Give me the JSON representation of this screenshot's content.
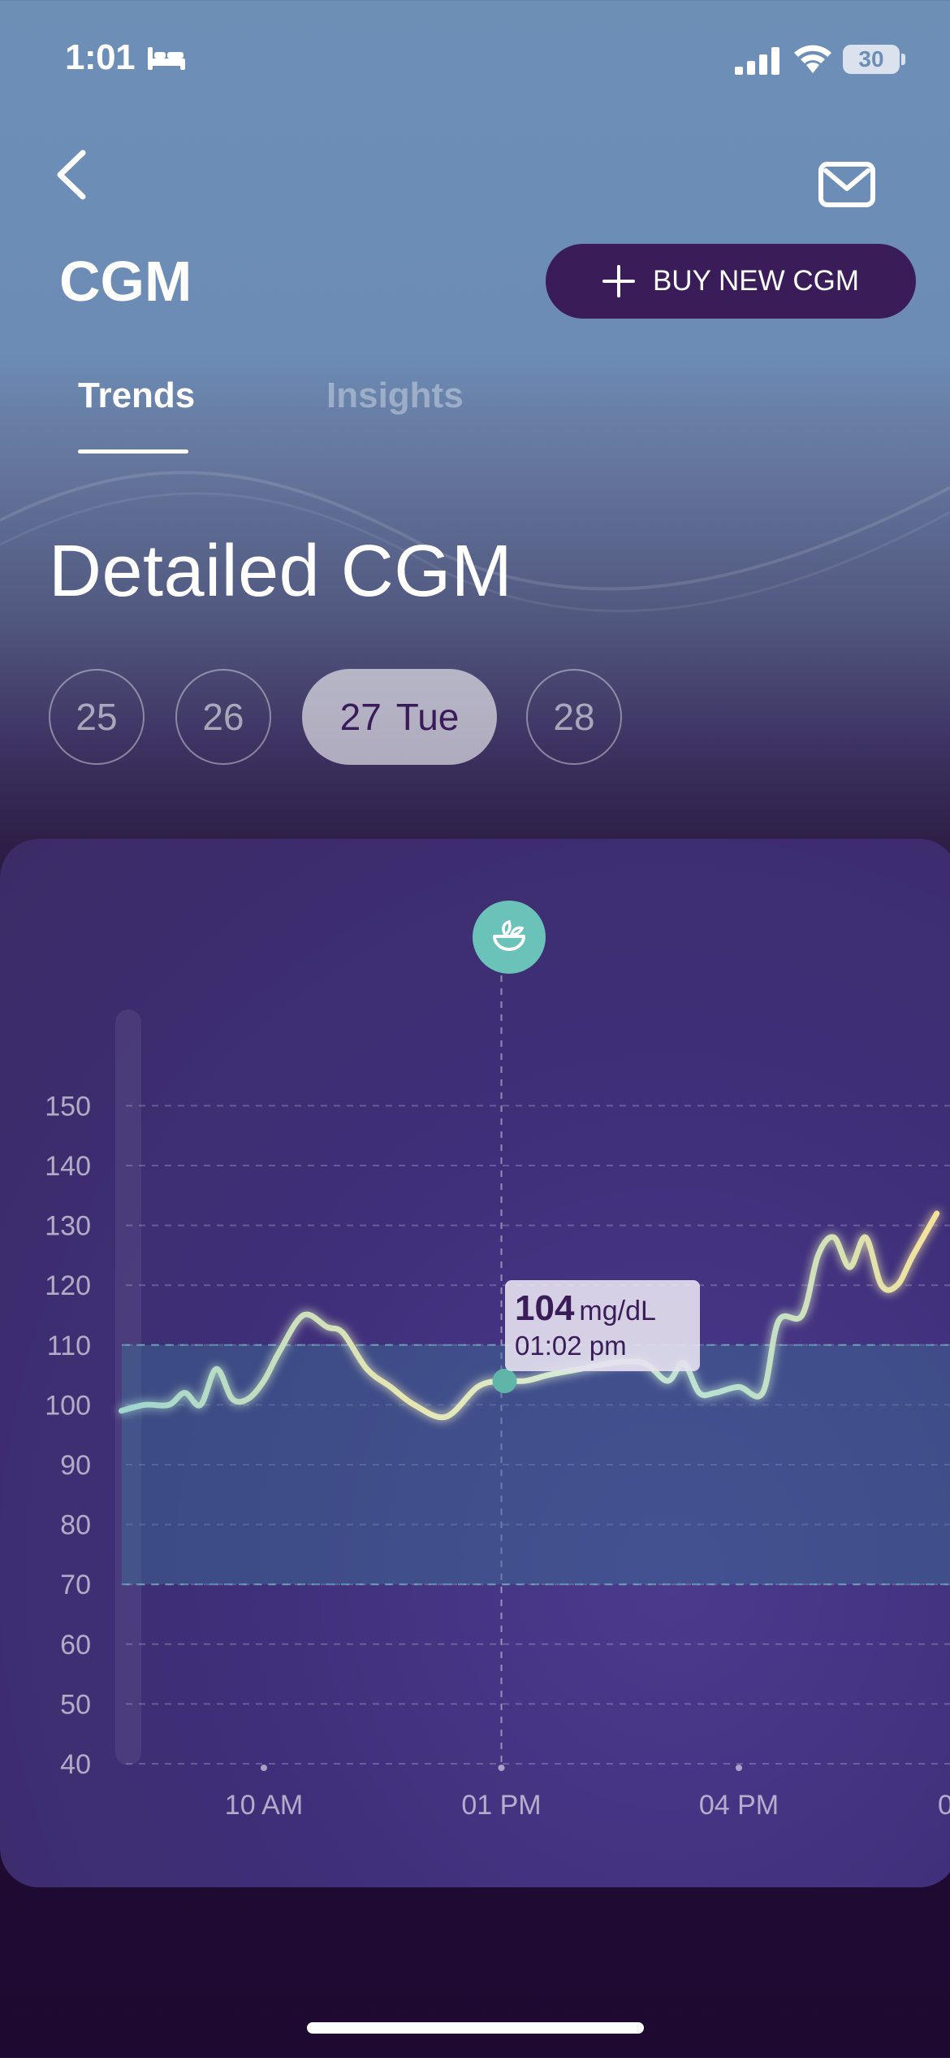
{
  "status_bar": {
    "time": "1:01",
    "battery": "30"
  },
  "header": {
    "title": "CGM",
    "buy_button": "BUY NEW CGM"
  },
  "tabs": [
    {
      "label": "Trends",
      "active": true
    },
    {
      "label": "Insights",
      "active": false
    }
  ],
  "section": {
    "title": "Detailed CGM"
  },
  "days": [
    {
      "label": "25",
      "selected": false
    },
    {
      "label": "26",
      "selected": false
    },
    {
      "label": "27",
      "weekday": "Tue",
      "selected": true
    },
    {
      "label": "28",
      "selected": false
    }
  ],
  "colors": {
    "accent": "#3a1c58",
    "marker": "#6ac2b8",
    "line_low": "#9fd6cf",
    "line_high": "#f5e29a"
  },
  "chart_data": {
    "type": "line",
    "ylim": [
      40,
      150
    ],
    "y_ticks": [
      "150",
      "140",
      "130",
      "120",
      "110",
      "100",
      "90",
      "80",
      "70",
      "60",
      "50",
      "40"
    ],
    "x_ticks": [
      "10 AM",
      "01 PM",
      "04 PM",
      "0"
    ],
    "x_tick_hours": [
      10,
      13,
      16,
      19
    ],
    "target_range": [
      70,
      110
    ],
    "series": [
      {
        "unit": "mg/dL",
        "x": [
          8.2,
          8.5,
          8.8,
          9.0,
          9.2,
          9.4,
          9.6,
          9.8,
          10.0,
          10.2,
          10.5,
          10.8,
          11.0,
          11.3,
          11.6,
          11.9,
          12.3,
          12.7,
          13.0,
          13.3,
          13.6,
          14.0,
          14.4,
          14.8,
          15.1,
          15.3,
          15.5,
          15.7,
          16.0,
          16.3,
          16.5,
          16.8,
          17.0,
          17.2,
          17.4,
          17.6,
          17.8,
          18.0,
          18.2,
          18.5
        ],
        "y": [
          99,
          100,
          100,
          102,
          100,
          106,
          101,
          101,
          104,
          109,
          115,
          113,
          112,
          106,
          103,
          100,
          98,
          103,
          104,
          104,
          105,
          106,
          107,
          107,
          104,
          107,
          102,
          102,
          103,
          102,
          114,
          115,
          125,
          128,
          123,
          128,
          120,
          120,
          125,
          132
        ]
      }
    ],
    "highlight": {
      "value": "104",
      "unit": "mg/dL",
      "time": "01:02 pm",
      "hour": 13.0
    }
  }
}
